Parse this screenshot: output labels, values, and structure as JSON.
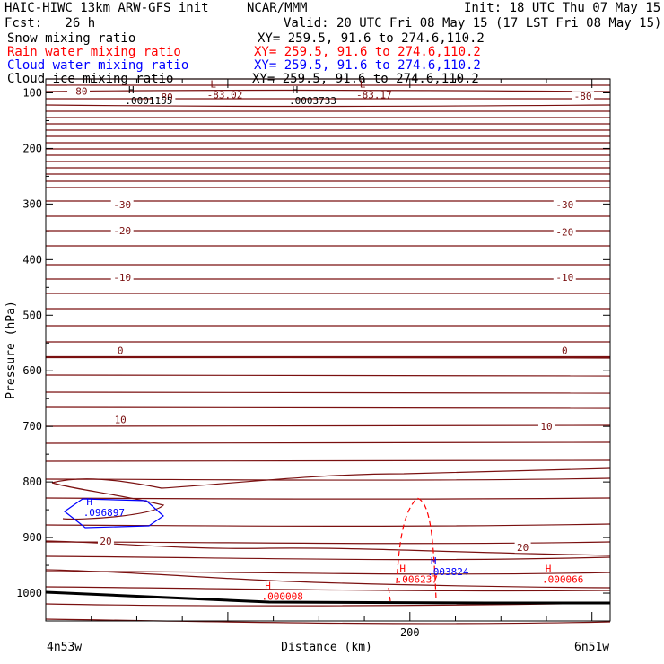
{
  "header": {
    "title_left": "HAIC-HIWC 13km ARW-GFS init",
    "title_center": "NCAR/MMM",
    "init": "Init: 18 UTC Thu 07 May 15",
    "fcst": "Fcst:   26 h",
    "valid": "Valid: 20 UTC Fri 08 May 15 (17 LST Fri 08 May 15)"
  },
  "fields": [
    {
      "label": "Snow mixing ratio",
      "xy": "XY= 259.5, 91.6 to 274.6,110.2",
      "color": "#000000"
    },
    {
      "label": "Rain water mixing ratio",
      "xy": "XY= 259.5, 91.6 to 274.6,110.2",
      "color": "#ff0000"
    },
    {
      "label": "Cloud water mixing ratio",
      "xy": "XY= 259.5, 91.6 to 274.6,110.2",
      "color": "#0000ff"
    },
    {
      "label": "Cloud ice mixing ratio",
      "xy": "XY= 259.5, 91.6 to 274.6,110.2",
      "color": "#000000"
    }
  ],
  "colors": {
    "isotherm": "#7a1010",
    "ground": "#000000",
    "rain": "#ff0000",
    "cloud": "#0000ff"
  },
  "chart_data": {
    "type": "line",
    "ylabel": "Pressure (hPa)",
    "xlabel": "Distance (km)",
    "y_axis": {
      "reversed": true,
      "range": [
        1050,
        75
      ],
      "ticks": [
        100,
        200,
        300,
        400,
        500,
        600,
        700,
        800,
        900,
        1000
      ]
    },
    "x_axis": {
      "range": [
        0,
        310
      ],
      "tick_labels": [
        {
          "x": 200,
          "label": "200"
        }
      ]
    },
    "left_end_label": "4n53w",
    "right_end_label": "6n51w",
    "isotherm_labels": [
      {
        "x": 18,
        "p": 97,
        "text": "-80"
      },
      {
        "x": 65,
        "p": 107,
        "text": "-80"
      },
      {
        "x": 295,
        "p": 106,
        "text": "-80"
      },
      {
        "x": 42,
        "p": 301,
        "text": "-30"
      },
      {
        "x": 285,
        "p": 301,
        "text": "-30"
      },
      {
        "x": 42,
        "p": 348,
        "text": "-20"
      },
      {
        "x": 285,
        "p": 350,
        "text": "-20"
      },
      {
        "x": 42,
        "p": 432,
        "text": "-10"
      },
      {
        "x": 285,
        "p": 432,
        "text": "-10"
      },
      {
        "x": 41,
        "p": 563,
        "text": "0"
      },
      {
        "x": 285,
        "p": 563,
        "text": "0"
      },
      {
        "x": 41,
        "p": 688,
        "text": "10"
      },
      {
        "x": 275,
        "p": 700,
        "text": "10"
      },
      {
        "x": 33,
        "p": 906,
        "text": "20"
      },
      {
        "x": 262,
        "p": 918,
        "text": "20"
      }
    ],
    "extrema": [
      {
        "type": "L",
        "x": 92,
        "p": 90,
        "value": "-83.02",
        "color": "#7a1010"
      },
      {
        "type": "L",
        "x": 174,
        "p": 90,
        "value": "-83.17",
        "color": "#7a1010"
      },
      {
        "type": "H",
        "x": 47,
        "p": 101,
        "value": ".0001155",
        "color": "#000000"
      },
      {
        "type": "H",
        "x": 137,
        "p": 101,
        "value": ".0003733",
        "color": "#000000"
      },
      {
        "type": "H",
        "x": 24,
        "p": 842,
        "value": ".096897",
        "color": "#0000ff"
      },
      {
        "type": "H",
        "x": 213,
        "p": 948,
        "value": ".003824",
        "color": "#0000ff"
      },
      {
        "type": "H",
        "x": 196,
        "p": 962,
        "value": ".006237",
        "color": "#ff0000"
      },
      {
        "type": "H",
        "x": 276,
        "p": 962,
        "value": ".000066",
        "color": "#ff0000"
      },
      {
        "type": "H",
        "x": 122,
        "p": 993,
        "value": ".000008",
        "color": "#ff0000"
      }
    ]
  }
}
